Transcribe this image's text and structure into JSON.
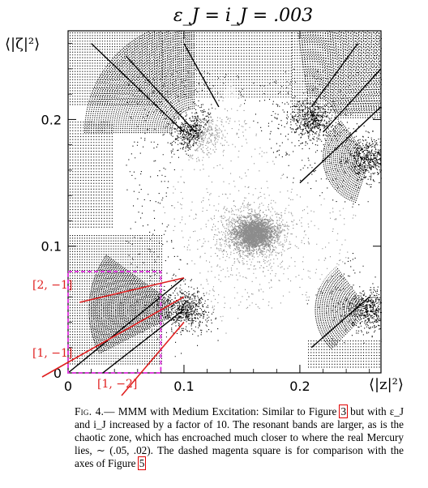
{
  "chart_data": {
    "type": "scatter",
    "title": "ε_J = i_J = .003",
    "xlabel": "⟨|z|²⟩",
    "ylabel": "⟨|ζ|²⟩",
    "xlim": [
      0,
      0.27
    ],
    "ylim": [
      0,
      0.27
    ],
    "xticks": [
      {
        "value": 0,
        "label": "0"
      },
      {
        "value": 0.1,
        "label": "0.1"
      },
      {
        "value": 0.2,
        "label": "0.2"
      }
    ],
    "yticks": [
      {
        "value": 0,
        "label": "0"
      },
      {
        "value": 0.1,
        "label": "0.1"
      },
      {
        "value": 0.2,
        "label": "0.2"
      }
    ],
    "chaotic_center": {
      "x": 0.16,
      "y": 0.11
    },
    "resonance_clusters": [
      {
        "x": 0.11,
        "y": 0.19
      },
      {
        "x": 0.21,
        "y": 0.2
      },
      {
        "x": 0.26,
        "y": 0.17
      },
      {
        "x": 0.1,
        "y": 0.05
      },
      {
        "x": 0.26,
        "y": 0.05
      }
    ],
    "dashed_square": {
      "x0": 0,
      "y0": 0,
      "x1": 0.08,
      "y1": 0.08,
      "color": "#e040e0"
    },
    "annotations": [
      {
        "label": "[2, −1]",
        "arrow_to": {
          "x": 0.1,
          "y": 0.075
        }
      },
      {
        "label": "[1, −1]",
        "arrow_to": {
          "x": 0.1,
          "y": 0.06
        }
      },
      {
        "label": "[1, −2]",
        "arrow_to": {
          "x": 0.1,
          "y": 0.04
        }
      }
    ],
    "annotation_color": "#e02020"
  },
  "caption": {
    "fig_label": "Fig. 4.—",
    "text_1": " MMM with Medium Excitation: Similar to Figure ",
    "ref_1": "3",
    "text_2": " but with ε_J and i_J increased by a factor of 10. The resonant bands are larger, as is the chaotic zone, which has encroached much closer to where the real Mercury lies, ∼ (.05, .02). The dashed magenta square is for comparison with the axes of Figure ",
    "ref_2": "5"
  }
}
